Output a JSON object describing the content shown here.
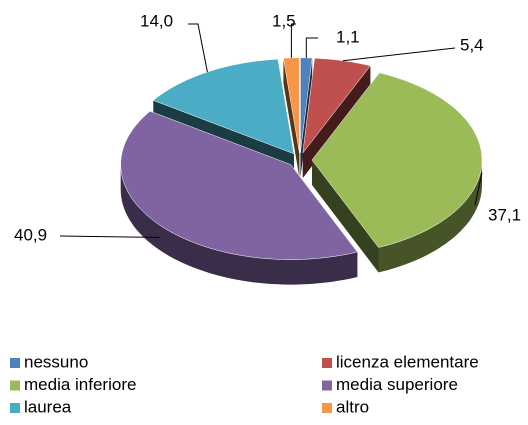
{
  "chart_data": {
    "type": "pie3d",
    "categories": [
      "nessuno",
      "licenza elementare",
      "media inferiore",
      "media superiore",
      "laurea",
      "altro"
    ],
    "values": [
      1.1,
      5.4,
      37.1,
      40.9,
      14.0,
      1.5
    ],
    "value_labels": [
      "1,1",
      "5,4",
      "37,1",
      "40,9",
      "14,0",
      "1,5"
    ],
    "colors": [
      "#4f81bd",
      "#c0504d",
      "#9bbb59",
      "#8064a2",
      "#4bacc6",
      "#f79646"
    ],
    "legend": "bottom"
  }
}
